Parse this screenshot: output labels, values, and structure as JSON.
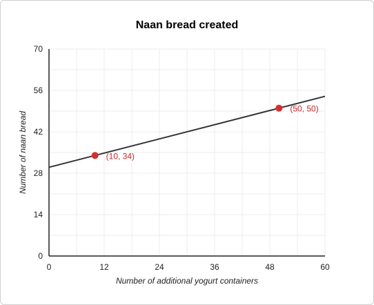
{
  "chart_data": {
    "type": "line",
    "title": "Naan bread created",
    "xlabel": "Number of additional yogurt containers",
    "ylabel": "Number of naan bread",
    "xlim": [
      0,
      60
    ],
    "ylim": [
      0,
      70
    ],
    "x_ticks": [
      0,
      12,
      24,
      36,
      48,
      60
    ],
    "y_ticks": [
      0,
      14,
      28,
      42,
      56,
      70
    ],
    "grid": true,
    "line": {
      "intercept": 30,
      "slope": 0.4,
      "color": "#333333"
    },
    "points": [
      {
        "x": 10,
        "y": 34,
        "label": "(10, 34)"
      },
      {
        "x": 50,
        "y": 50,
        "label": "(50, 50)"
      }
    ],
    "point_color": "#d32f2f"
  }
}
